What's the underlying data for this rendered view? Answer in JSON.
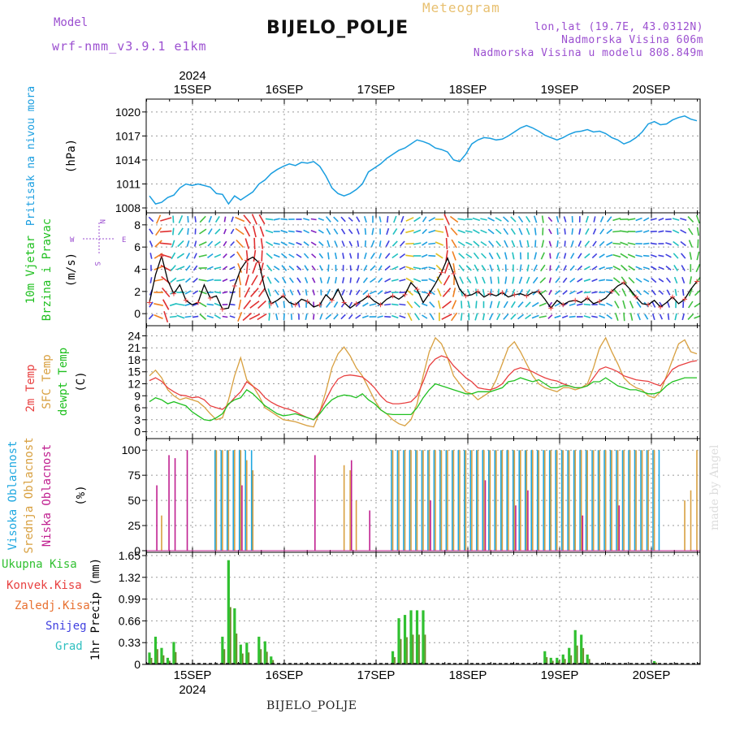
{
  "header": {
    "model_label": "Model",
    "model_name": "wrf-nmm_v3.9.1 e1km",
    "station": "BIJELO_POLJE",
    "subtitle": "Meteogram",
    "coords": "lon,lat (19.7E, 43.0312N)",
    "elevation": "Nadmorska Visina 606m",
    "model_elevation": "Nadmorska Visina u modelu 808.849m"
  },
  "watermark": "made by Angel",
  "footer": "BIJELO_POLJE",
  "colors": {
    "pressure": "#1a9ee0",
    "wind_speed": "#000000",
    "temp_2m": "#e84040",
    "temp_sfc": "#d8a040",
    "dewpoint": "#20c020",
    "cloud_high": "#20a8e0",
    "cloud_mid": "#d8a040",
    "cloud_low": "#c02090",
    "precip_total": "#30c030",
    "precip_conv": "#e84040",
    "precip_strat": "#e87030",
    "snow": "#4040e0",
    "hail": "#30c0c0"
  },
  "chart_data": {
    "type": "meteogram",
    "x_axis": {
      "top_year": "2024",
      "bottom_year": "2024",
      "day_labels": [
        "15SEP",
        "16SEP",
        "17SEP",
        "18SEP",
        "19SEP",
        "20SEP"
      ],
      "start": "2024-09-14T18:00",
      "end": "2024-09-20T14:00"
    },
    "panels": [
      {
        "id": "pressure",
        "type": "line",
        "ylabel_lines": [
          "Pritisak na nivou mora"
        ],
        "unit": "(hPa)",
        "ylim": [
          1008,
          1021
        ],
        "ticks": [
          "1008",
          "1011",
          "1014",
          "1017",
          "1020"
        ],
        "series": [
          {
            "values": [
              1009.5,
              1008.5,
              1008.7,
              1009.3,
              1009.6,
              1010.5,
              1011.0,
              1010.8,
              1011.0,
              1010.8,
              1010.6,
              1009.8,
              1009.7,
              1008.5,
              1009.5,
              1009.0,
              1009.5,
              1010.0,
              1011.0,
              1011.5,
              1012.3,
              1012.8,
              1013.2,
              1013.5,
              1013.3,
              1013.7,
              1013.6,
              1013.8,
              1013.2,
              1012.0,
              1010.5,
              1009.8,
              1009.5,
              1009.8,
              1010.3,
              1011.0,
              1012.5,
              1013.0,
              1013.5,
              1014.2,
              1014.7,
              1015.2,
              1015.5,
              1016.0,
              1016.5,
              1016.3,
              1016.0,
              1015.5,
              1015.3,
              1015.0,
              1014.0,
              1013.8,
              1014.7,
              1016.0,
              1016.5,
              1016.8,
              1016.7,
              1016.5,
              1016.6,
              1017.0,
              1017.5,
              1018.0,
              1018.3,
              1018.0,
              1017.6,
              1017.1,
              1016.8,
              1016.5,
              1016.8,
              1017.2,
              1017.5,
              1017.6,
              1017.8,
              1017.5,
              1017.6,
              1017.3,
              1016.8,
              1016.5,
              1016.0,
              1016.3,
              1016.8,
              1017.5,
              1018.5,
              1018.8,
              1018.4,
              1018.5,
              1019.0,
              1019.3,
              1019.5,
              1019.1,
              1018.9
            ]
          }
        ]
      },
      {
        "id": "wind",
        "type": "line",
        "ylabel_lines": [
          "10m Vjetar",
          "Brzina i Pravac"
        ],
        "unit": "(m/s)",
        "compass": [
          "W",
          "E",
          "N",
          "S"
        ],
        "ylim": [
          -0.5,
          8.5
        ],
        "ticks": [
          "0",
          "2",
          "4",
          "6",
          "8"
        ],
        "series": [
          {
            "values": [
              1.0,
              3.5,
              5.2,
              3.0,
              1.8,
              2.6,
              1.2,
              0.8,
              1.0,
              2.6,
              1.4,
              1.6,
              0.4,
              0.5,
              2.5,
              4.0,
              4.8,
              5.1,
              4.6,
              2.2,
              0.9,
              1.2,
              1.6,
              1.0,
              0.8,
              1.3,
              1.1,
              0.6,
              0.8,
              1.7,
              1.2,
              2.2,
              1.0,
              0.5,
              0.9,
              1.2,
              1.6,
              1.1,
              0.8,
              1.3,
              1.6,
              1.3,
              1.7,
              2.8,
              2.2,
              1.0,
              1.8,
              2.7,
              3.7,
              5.0,
              3.6,
              2.2,
              1.6,
              1.7,
              2.0,
              1.5,
              1.8,
              1.6,
              1.9,
              1.5,
              1.7,
              1.8,
              1.6,
              1.9,
              2.0,
              1.3,
              0.5,
              1.2,
              0.8,
              1.1,
              1.2,
              1.0,
              1.4,
              0.9,
              1.1,
              1.4,
              2.0,
              2.5,
              2.8,
              2.2,
              1.5,
              0.9,
              0.8,
              1.2,
              0.6,
              1.0,
              1.5,
              0.9,
              1.3,
              2.2,
              2.9
            ]
          }
        ]
      },
      {
        "id": "temperature",
        "type": "line",
        "ylabel_lines": [
          "2m Temp",
          "SFC Temp",
          "dewpt Temp"
        ],
        "unit": "(C)",
        "ylim": [
          -0.5,
          24.5
        ],
        "ticks": [
          "0",
          "3",
          "6",
          "9",
          "12",
          "15",
          "18",
          "21",
          "24"
        ],
        "series": [
          {
            "name": "2m Temp",
            "values": [
              12.8,
              13.5,
              12.6,
              11.0,
              10.0,
              9.2,
              9.0,
              8.5,
              8.7,
              8.0,
              6.5,
              6.0,
              5.6,
              6.8,
              8.5,
              10.0,
              12.5,
              11.4,
              10.3,
              8.5,
              7.4,
              6.6,
              6.0,
              5.6,
              5.0,
              4.2,
              3.5,
              3.0,
              5.0,
              8.0,
              11.0,
              13.2,
              14.0,
              14.2,
              14.0,
              13.7,
              12.5,
              11.0,
              9.0,
              7.5,
              7.0,
              7.0,
              7.2,
              7.5,
              9.0,
              12.5,
              16.5,
              18.2,
              19.0,
              18.5,
              16.5,
              15.0,
              13.5,
              12.5,
              11.0,
              10.7,
              10.5,
              11.0,
              12.0,
              14.0,
              15.5,
              16.0,
              15.6,
              15.0,
              14.2,
              13.5,
              13.0,
              12.7,
              12.0,
              11.5,
              11.0,
              11.0,
              11.5,
              13.5,
              15.6,
              16.2,
              15.7,
              15.0,
              14.0,
              13.5,
              13.0,
              12.8,
              12.6,
              12.0,
              11.5,
              13.5,
              15.6,
              16.5,
              17.0,
              17.5,
              17.8
            ]
          },
          {
            "name": "SFC Temp",
            "values": [
              14.0,
              15.4,
              13.5,
              10.5,
              9.0,
              8.0,
              8.5,
              8.0,
              7.5,
              6.2,
              4.5,
              3.0,
              3.5,
              8.0,
              14.0,
              18.5,
              13.0,
              11.5,
              9.0,
              6.0,
              5.0,
              4.0,
              3.0,
              2.8,
              2.5,
              2.0,
              1.5,
              1.2,
              5.0,
              10.0,
              16.0,
              19.5,
              21.2,
              19.0,
              16.0,
              14.0,
              11.0,
              8.0,
              5.5,
              4.5,
              3.0,
              2.0,
              1.5,
              3.0,
              7.0,
              14.0,
              20.0,
              23.5,
              22.0,
              18.5,
              14.0,
              12.0,
              10.0,
              9.5,
              8.0,
              9.0,
              10.0,
              13.0,
              17.0,
              21.0,
              22.5,
              20.0,
              17.0,
              14.0,
              12.0,
              11.0,
              10.5,
              10.0,
              11.0,
              11.0,
              10.5,
              11.0,
              12.0,
              16.0,
              21.0,
              23.5,
              20.0,
              17.0,
              13.5,
              12.0,
              11.0,
              10.5,
              9.0,
              8.5,
              10.0,
              14.0,
              18.0,
              22.0,
              23.0,
              20.0,
              19.5
            ]
          },
          {
            "name": "dewpt Temp",
            "values": [
              7.5,
              8.5,
              8.0,
              7.0,
              7.5,
              7.0,
              6.5,
              5.0,
              4.0,
              3.0,
              2.8,
              3.5,
              4.5,
              7.0,
              8.0,
              8.5,
              10.5,
              9.5,
              8.0,
              6.5,
              5.5,
              4.5,
              4.0,
              4.2,
              4.5,
              4.0,
              3.5,
              3.0,
              4.5,
              6.5,
              8.0,
              8.8,
              9.2,
              9.0,
              8.5,
              9.5,
              8.0,
              7.0,
              5.5,
              4.5,
              4.3,
              4.3,
              4.3,
              4.3,
              6.0,
              8.5,
              10.5,
              12.0,
              11.5,
              11.0,
              10.5,
              10.0,
              9.5,
              9.5,
              10.0,
              10.0,
              10.0,
              10.5,
              11.0,
              12.5,
              12.8,
              13.5,
              13.0,
              12.5,
              13.0,
              12.0,
              11.0,
              11.0,
              11.5,
              11.5,
              11.0,
              11.0,
              11.5,
              12.5,
              12.5,
              13.5,
              12.5,
              11.5,
              11.0,
              10.5,
              10.5,
              10.0,
              9.5,
              9.5,
              10.0,
              11.5,
              12.5,
              13.0,
              13.5,
              13.5,
              13.5
            ]
          }
        ]
      },
      {
        "id": "clouds",
        "type": "bar",
        "ylabel_lines": [
          "Visoka Oblacnost",
          "Srednja Oblacnost",
          "Niska Oblacnost"
        ],
        "unit": "(%)",
        "ylim": [
          0,
          105
        ],
        "ticks": [
          "0",
          "25",
          "50",
          "75",
          "100"
        ],
        "series": [
          {
            "name": "Visoka Oblacnost",
            "values": [
              0,
              0,
              0,
              0,
              0,
              0,
              0,
              0,
              0,
              0,
              0,
              100,
              100,
              100,
              100,
              100,
              100,
              100,
              0,
              0,
              0,
              0,
              0,
              0,
              0,
              0,
              0,
              0,
              0,
              0,
              0,
              0,
              0,
              0,
              0,
              0,
              0,
              0,
              0,
              0,
              100,
              100,
              100,
              100,
              100,
              100,
              100,
              100,
              100,
              100,
              100,
              100,
              100,
              100,
              100,
              100,
              100,
              100,
              100,
              100,
              100,
              100,
              100,
              100,
              100,
              100,
              100,
              100,
              100,
              100,
              100,
              100,
              100,
              100,
              100,
              100,
              100,
              100,
              100,
              100,
              100,
              100,
              100,
              100,
              100,
              0,
              0,
              0,
              0,
              0,
              0
            ]
          },
          {
            "name": "Srednja Oblacnost",
            "values": [
              0,
              0,
              35,
              0,
              0,
              0,
              0,
              0,
              0,
              0,
              0,
              100,
              100,
              100,
              100,
              100,
              90,
              80,
              0,
              0,
              0,
              0,
              0,
              0,
              0,
              0,
              0,
              0,
              0,
              0,
              0,
              0,
              85,
              80,
              50,
              0,
              0,
              0,
              0,
              0,
              100,
              100,
              100,
              100,
              100,
              100,
              100,
              100,
              100,
              100,
              100,
              100,
              100,
              100,
              100,
              100,
              100,
              100,
              100,
              100,
              100,
              100,
              100,
              100,
              100,
              100,
              100,
              100,
              100,
              100,
              100,
              100,
              100,
              100,
              100,
              100,
              100,
              100,
              100,
              100,
              100,
              100,
              100,
              100,
              0,
              0,
              0,
              0,
              50,
              60,
              100
            ]
          },
          {
            "name": "Niska Oblacnost",
            "values": [
              0,
              65,
              0,
              95,
              92,
              0,
              100,
              0,
              0,
              0,
              0,
              0,
              0,
              0,
              0,
              65,
              0,
              0,
              0,
              0,
              0,
              0,
              0,
              0,
              0,
              0,
              0,
              95,
              0,
              0,
              0,
              0,
              0,
              90,
              0,
              0,
              40,
              0,
              0,
              0,
              0,
              0,
              0,
              0,
              0,
              0,
              50,
              0,
              0,
              0,
              0,
              0,
              0,
              0,
              0,
              70,
              0,
              0,
              0,
              0,
              45,
              0,
              60,
              0,
              0,
              0,
              0,
              0,
              0,
              0,
              0,
              35,
              0,
              0,
              0,
              0,
              0,
              45,
              0,
              0,
              0,
              0,
              0,
              0,
              0,
              0,
              0,
              0,
              0,
              0,
              0
            ]
          }
        ]
      },
      {
        "id": "precip",
        "type": "bar",
        "ylabel_lines": [
          "1hr Precip (mm)"
        ],
        "legend": [
          "Ukupna Kisa",
          "Konvek.Kisa",
          "Zaledj.Kisa",
          "Snijeg",
          "Grad"
        ],
        "ylim": [
          0,
          1.65
        ],
        "ticks": [
          "0",
          "0.33",
          "0.66",
          "0.99",
          "1.32",
          "1.65"
        ],
        "series": [
          {
            "name": "Ukupna Kisa",
            "values": [
              0.18,
              0.42,
              0.25,
              0.1,
              0.34,
              0,
              0,
              0,
              0,
              0,
              0,
              0,
              0.42,
              1.58,
              0.85,
              0.3,
              0.33,
              0,
              0.42,
              0.35,
              0.12,
              0,
              0,
              0,
              0,
              0,
              0,
              0,
              0,
              0,
              0,
              0,
              0,
              0,
              0,
              0,
              0,
              0,
              0,
              0,
              0.2,
              0.7,
              0.75,
              0.82,
              0.82,
              0.82,
              0,
              0,
              0,
              0,
              0,
              0,
              0,
              0,
              0,
              0,
              0,
              0,
              0,
              0,
              0,
              0,
              0,
              0,
              0,
              0.2,
              0.1,
              0.1,
              0.15,
              0.25,
              0.52,
              0.45,
              0.15,
              0,
              0,
              0,
              0,
              0,
              0,
              0,
              0,
              0,
              0,
              0.05,
              0,
              0,
              0,
              0,
              0,
              0,
              0
            ]
          }
        ]
      }
    ]
  }
}
